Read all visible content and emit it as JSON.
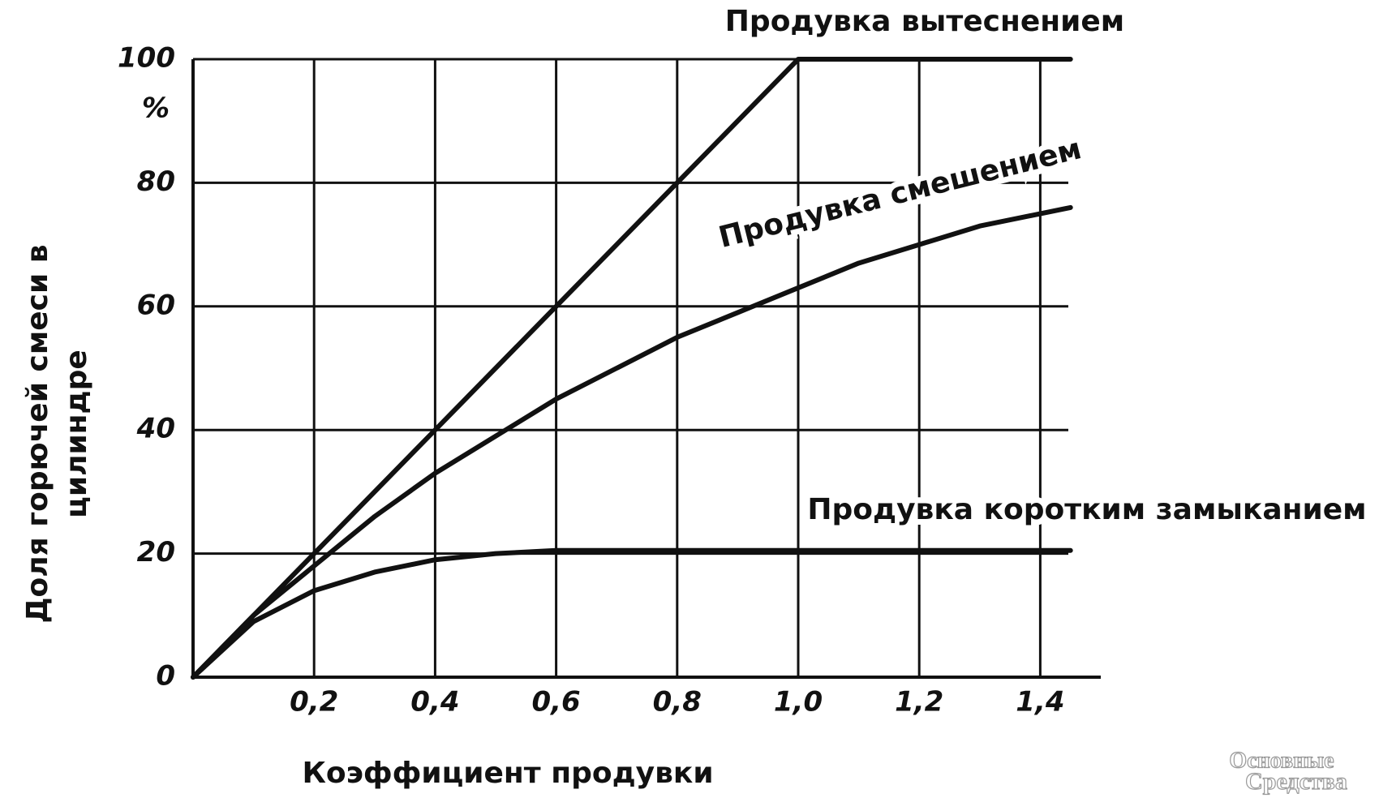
{
  "chart_data": {
    "type": "line",
    "xlabel": "Коэффициент продувки",
    "ylabel_lines": [
      "Доля горючей смеси в",
      "цилиндре"
    ],
    "y_unit": "%",
    "xlim": [
      0,
      1.5
    ],
    "ylim": [
      0,
      100
    ],
    "xticks": [
      {
        "value": 0.2,
        "label": "0,2"
      },
      {
        "value": 0.4,
        "label": "0,4"
      },
      {
        "value": 0.6,
        "label": "0,6"
      },
      {
        "value": 0.8,
        "label": "0,8"
      },
      {
        "value": 1.0,
        "label": "1,0"
      },
      {
        "value": 1.2,
        "label": "1,2"
      },
      {
        "value": 1.4,
        "label": "1,4"
      }
    ],
    "yticks": [
      0,
      20,
      40,
      60,
      80,
      100
    ],
    "grid": true,
    "series": [
      {
        "name": "Продувка вытеснением",
        "color": "#111111",
        "x": [
          0,
          0.2,
          0.4,
          0.6,
          0.8,
          1.0,
          1.45
        ],
        "values": [
          0,
          20,
          40,
          60,
          80,
          100,
          100
        ]
      },
      {
        "name": "Продувка смешением",
        "color": "#111111",
        "x": [
          0,
          0.1,
          0.2,
          0.3,
          0.4,
          0.5,
          0.6,
          0.7,
          0.8,
          0.9,
          1.0,
          1.1,
          1.2,
          1.3,
          1.45
        ],
        "values": [
          0,
          10,
          18,
          26,
          33,
          39,
          45,
          50,
          55,
          59,
          63,
          67,
          70,
          73,
          76
        ]
      },
      {
        "name": "Продувка коротким замыканием",
        "color": "#111111",
        "x": [
          0,
          0.1,
          0.2,
          0.3,
          0.4,
          0.5,
          0.6,
          0.8,
          1.0,
          1.45
        ],
        "values": [
          0,
          9,
          14,
          17,
          19,
          20,
          20.5,
          20.5,
          20.5,
          20.5
        ]
      }
    ],
    "watermark": [
      "Основные",
      "Средства"
    ]
  }
}
